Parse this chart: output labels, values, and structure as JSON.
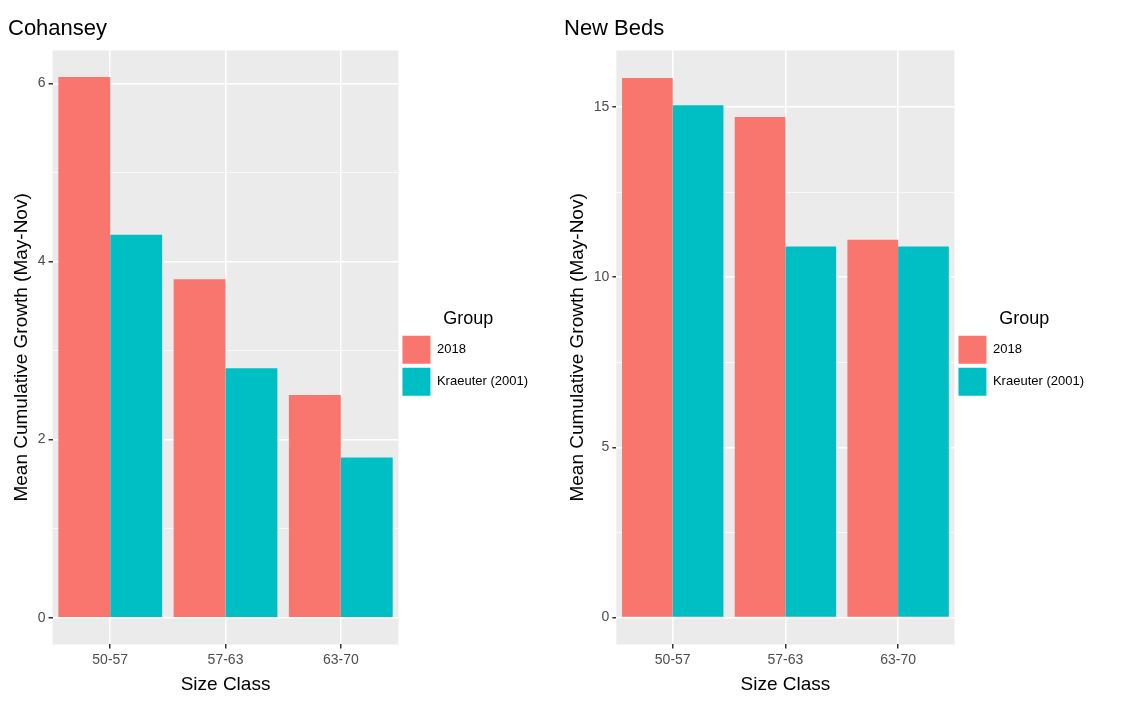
{
  "chart_data": [
    {
      "type": "bar",
      "title": "Cohansey",
      "xlabel": "Size Class",
      "ylabel": "Mean Cumulative Growth (May-Nov)",
      "legend_title": "Group",
      "legend": "right",
      "grid": true,
      "categories": [
        "50-57",
        "57-63",
        "63-70"
      ],
      "series": [
        {
          "name": "2018",
          "color": "#f8766d",
          "values": [
            6.07,
            3.8,
            2.5
          ]
        },
        {
          "name": "Kraeuter (2001)",
          "color": "#00bfc4",
          "values": [
            4.3,
            2.8,
            1.8
          ]
        }
      ],
      "ylim": [
        -0.3,
        6.37
      ],
      "yticks": [
        0,
        {
          "value": 1,
          "label": null
        },
        2,
        {
          "value": 3,
          "label": null
        },
        4,
        {
          "value": 5,
          "label": null
        },
        6
      ]
    },
    {
      "type": "bar",
      "title": "New Beds",
      "xlabel": "Size Class",
      "ylabel": "Mean Cumulative Growth (May-Nov)",
      "legend_title": "Group",
      "legend": "right",
      "grid": true,
      "categories": [
        "50-57",
        "57-63",
        "63-70"
      ],
      "series": [
        {
          "name": "2018",
          "color": "#f8766d",
          "values": [
            15.85,
            14.7,
            11.1
          ]
        },
        {
          "name": "Kraeuter (2001)",
          "color": "#00bfc4",
          "values": [
            15.05,
            10.9,
            10.9
          ]
        }
      ],
      "ylim": [
        -0.79,
        16.66
      ],
      "yticks": [
        0,
        {
          "value": 2.5,
          "label": null
        },
        5,
        {
          "value": 7.5,
          "label": null
        },
        10,
        {
          "value": 12.5,
          "label": null
        },
        15
      ]
    }
  ]
}
